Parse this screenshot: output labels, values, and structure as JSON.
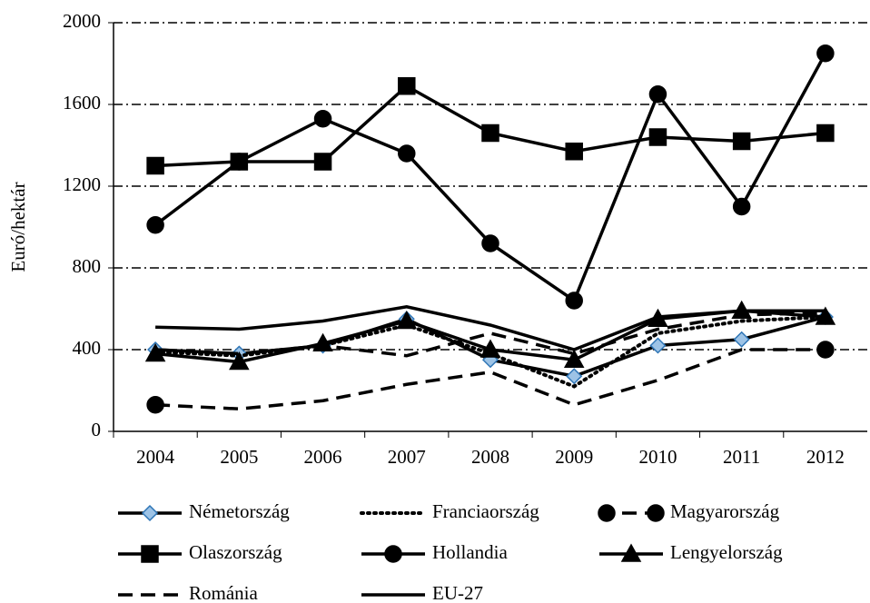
{
  "chart_data": {
    "type": "line",
    "ylabel": "Euró/hektár",
    "categories": [
      "2004",
      "2005",
      "2006",
      "2007",
      "2008",
      "2009",
      "2010",
      "2011",
      "2012"
    ],
    "ylim": [
      0,
      2000
    ],
    "yticks": [
      0,
      400,
      800,
      1200,
      1600,
      2000
    ],
    "grid": true,
    "series": [
      {
        "name": "Németország",
        "color": "#000000",
        "marker_color": "#9dc3e6",
        "line": "solid",
        "marker": "diamond",
        "values": [
          400,
          380,
          420,
          550,
          350,
          270,
          420,
          450,
          560
        ]
      },
      {
        "name": "Franciaország",
        "color": "#000000",
        "line": "dotted",
        "marker": null,
        "values": [
          390,
          370,
          420,
          520,
          380,
          220,
          480,
          540,
          560
        ]
      },
      {
        "name": "Magyarország",
        "color": "#000000",
        "line": "dashed",
        "marker": "circle",
        "markers": "ends",
        "values": [
          130,
          110,
          150,
          230,
          290,
          130,
          250,
          400,
          400
        ]
      },
      {
        "name": "Olaszország",
        "color": "#000000",
        "line": "solid",
        "marker": "square",
        "values": [
          1300,
          1320,
          1320,
          1690,
          1460,
          1370,
          1440,
          1420,
          1460
        ]
      },
      {
        "name": "Hollandia",
        "color": "#000000",
        "line": "solid",
        "marker": "circle",
        "values": [
          1010,
          1320,
          1530,
          1360,
          920,
          640,
          1650,
          1100,
          1850
        ]
      },
      {
        "name": "Lengyelország",
        "color": "#000000",
        "line": "solid",
        "marker": "triangle",
        "values": [
          380,
          340,
          430,
          540,
          400,
          350,
          550,
          590,
          560
        ]
      },
      {
        "name": "Románia",
        "color": "#000000",
        "line": "dashed",
        "marker": null,
        "values": [
          400,
          380,
          420,
          370,
          480,
          380,
          500,
          570,
          580
        ]
      },
      {
        "name": "EU-27",
        "color": "#000000",
        "line": "solid",
        "marker": null,
        "values": [
          510,
          500,
          540,
          610,
          520,
          400,
          560,
          590,
          590
        ]
      }
    ]
  }
}
